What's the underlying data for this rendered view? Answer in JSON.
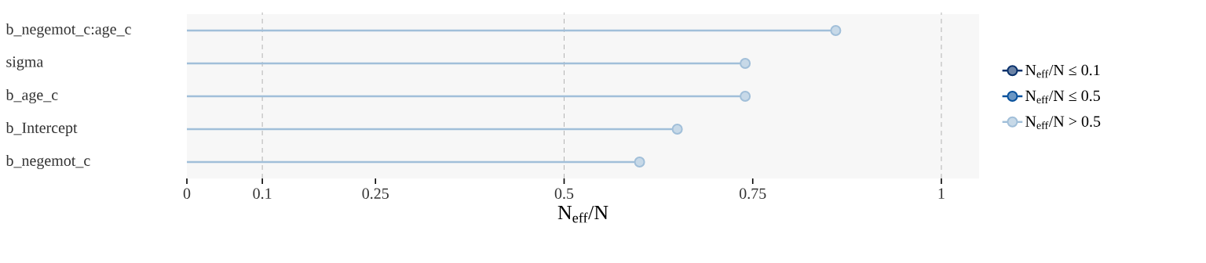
{
  "chart_data": {
    "type": "lollipop",
    "orientation": "horizontal",
    "xlabel": "N$_{eff}$/N",
    "categories": [
      "b_negemot_c:age_c",
      "sigma",
      "b_age_c",
      "b_Intercept",
      "b_negemot_c"
    ],
    "series": [
      {
        "name": "N$_{eff}$/N ≤ 0.1",
        "color": "#08306b",
        "values": [
          null,
          null,
          null,
          null,
          null
        ]
      },
      {
        "name": "N$_{eff}$/N ≤ 0.5",
        "color": "#08519c",
        "values": [
          null,
          null,
          null,
          null,
          null
        ]
      },
      {
        "name": "N$_{eff}$/N > 0.5",
        "color": "#a1bfd9",
        "values": [
          0.86,
          0.74,
          0.74,
          0.65,
          0.6
        ]
      }
    ],
    "xlim": [
      0,
      1.05
    ],
    "xticks": [
      0,
      0.1,
      0.25,
      0.5,
      0.75,
      1
    ],
    "ref_lines": [
      {
        "axis": "x",
        "value": 0.1,
        "color": "#b3b3b3",
        "line_style": "dashed"
      },
      {
        "axis": "x",
        "value": 0.5,
        "color": "#b3b3b3",
        "line_style": "dashed"
      },
      {
        "axis": "x",
        "value": 1,
        "color": "#b3b3b3",
        "line_style": "dashed"
      }
    ],
    "legend": "right",
    "marker": "circle",
    "line_style": "solid"
  }
}
